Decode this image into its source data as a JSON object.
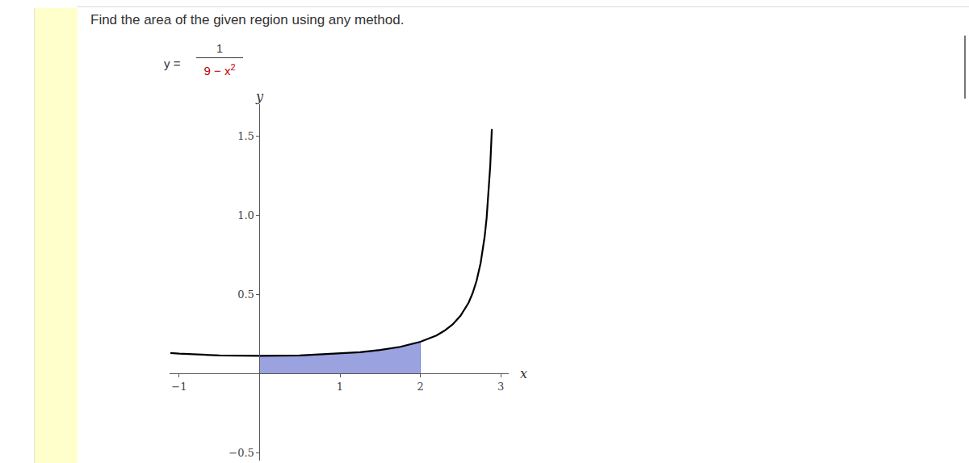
{
  "question": "Find the area of the given region using any method.",
  "equation": {
    "lhs": "y =",
    "numerator": "1",
    "denominator_base": "9 − x",
    "denominator_power": "2"
  },
  "chart_data": {
    "type": "line",
    "xlabel": "x",
    "ylabel": "y",
    "x": [
      -1.11,
      -1,
      -0.5,
      0,
      0.5,
      1,
      1.25,
      1.5,
      1.75,
      2,
      2.2,
      2.3,
      2.4,
      2.5,
      2.6,
      2.65,
      2.7,
      2.75,
      2.8,
      2.825,
      2.85,
      2.87,
      2.89
    ],
    "values": [
      0.129,
      0.125,
      0.114,
      0.111,
      0.114,
      0.125,
      0.134,
      0.148,
      0.168,
      0.2,
      0.24,
      0.27,
      0.309,
      0.364,
      0.446,
      0.506,
      0.585,
      0.696,
      0.862,
      0.981,
      1.14,
      1.31,
      1.543
    ],
    "color": "#000000",
    "region": {
      "from": 0,
      "to": 2,
      "color": "#9aa2e0"
    },
    "xlim": [
      -1.12,
      3.1
    ],
    "xticks": [
      {
        "value": -1,
        "label": "−1"
      },
      1,
      2,
      3
    ],
    "ylim": [
      -0.55,
      1.7
    ],
    "yticks": [
      {
        "value": -0.5,
        "label": "−0.5"
      },
      0.5,
      {
        "value": 1,
        "label": "1.0"
      },
      1.5
    ],
    "grid": false
  }
}
